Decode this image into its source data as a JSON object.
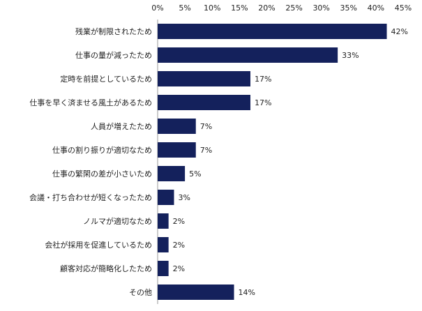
{
  "chart_data": {
    "type": "bar",
    "orientation": "horizontal",
    "title": "",
    "xlabel": "",
    "ylabel": "",
    "xlim": [
      0,
      45
    ],
    "ticks": [
      "0%",
      "5%",
      "10%",
      "15%",
      "20%",
      "25%",
      "30%",
      "35%",
      "40%",
      "45%"
    ],
    "tick_values": [
      0,
      5,
      10,
      15,
      20,
      25,
      30,
      35,
      40,
      45
    ],
    "axis_position": "top",
    "grid": false,
    "categories": [
      "残業が制限されたため",
      "仕事の量が減ったため",
      "定時を前提としているため",
      "仕事を早く済ませる風土があるため",
      "人員が増えたため",
      "仕事の割り振りが適切なため",
      "仕事の繁閑の差が小さいため",
      "会議・打ち合わせが短くなったため",
      "ノルマが適切なため",
      "会社が採用を促進しているため",
      "顧客対応が簡略化したため",
      "その他"
    ],
    "values": [
      42,
      33,
      17,
      17,
      7,
      7,
      5,
      3,
      2,
      2,
      2,
      14
    ],
    "data_labels": [
      "42%",
      "33%",
      "17%",
      "17%",
      "7%",
      "7%",
      "5%",
      "3%",
      "2%",
      "2%",
      "2%",
      "14%"
    ],
    "bar_color": "#14215c"
  }
}
